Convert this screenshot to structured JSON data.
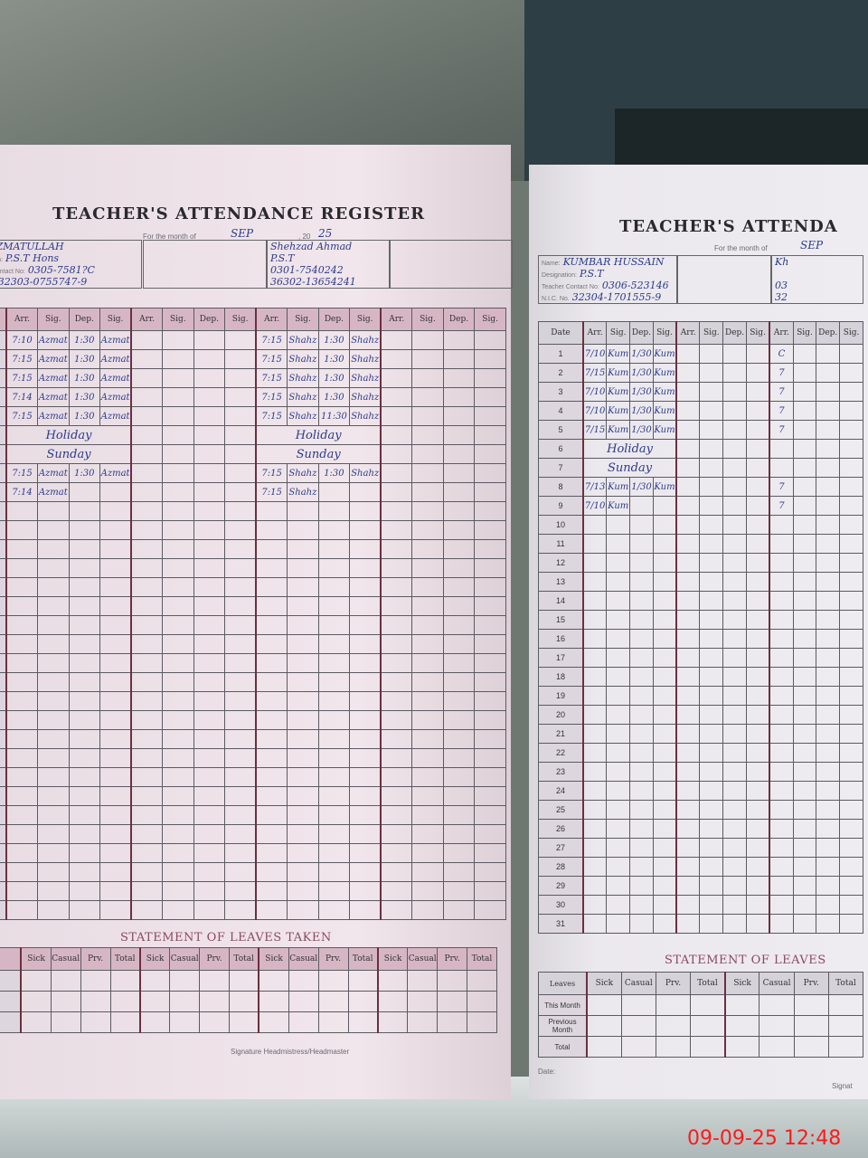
{
  "left_page": {
    "title": "TEACHER'S ATTENDANCE REGISTER",
    "month_label": "For the month of",
    "month_value": "SEP",
    "year_label": ", 20",
    "year_value": "25",
    "info_labels": {
      "name": "Name:",
      "designation": "Designation:",
      "contact": "Teacher Contact No:",
      "cnic": "N.I.C. No."
    },
    "teachers": [
      {
        "name": "AZMATULLAH",
        "designation": "P.S.T Hons",
        "contact": "0305-7581?C",
        "cnic": "32303-0755747-9",
        "rows": [
          [
            "7:10",
            "Azmat",
            "1:30",
            "Azmat"
          ],
          [
            "7:15",
            "Azmat",
            "1:30",
            "Azmat"
          ],
          [
            "7:15",
            "Azmat",
            "1:30",
            "Azmat"
          ],
          [
            "7:14",
            "Azmat",
            "1:30",
            "Azmat"
          ],
          [
            "7:15",
            "Azmat",
            "1:30",
            "Azmat"
          ],
          [
            "Holiday"
          ],
          [
            "Sunday"
          ],
          [
            "7:15",
            "Azmat",
            "1:30",
            "Azmat"
          ],
          [
            "7:14",
            "Azmat"
          ]
        ]
      },
      {
        "name": "",
        "designation": "",
        "contact": "",
        "cnic": "",
        "rows": []
      },
      {
        "name": "Shehzad Ahmad",
        "designation": "P.S.T",
        "contact": "0301-7540242",
        "cnic": "36302-13654241",
        "rows": [
          [
            "7:15",
            "Shahz",
            "1:30",
            "Shahz"
          ],
          [
            "7:15",
            "Shahz",
            "1:30",
            "Shahz"
          ],
          [
            "7:15",
            "Shahz",
            "1:30",
            "Shahz"
          ],
          [
            "7:15",
            "Shahz",
            "1:30",
            "Shahz"
          ],
          [
            "7:15",
            "Shahz",
            "11:30",
            "Shahz"
          ],
          [
            "Holiday"
          ],
          [
            "Sunday"
          ],
          [
            "7:15",
            "Shahz",
            "1:30",
            "Shahz"
          ],
          [
            "7:15",
            "Shahz"
          ]
        ]
      },
      {
        "name": "",
        "designation": "",
        "contact": "",
        "cnic": "",
        "rows": []
      }
    ],
    "column_headers": [
      "Arr.",
      "Sig.",
      "Dep.",
      "Sig."
    ],
    "leaves_title": "STATEMENT OF LEAVES TAKEN",
    "leave_headers": [
      "Sick",
      "Casual",
      "Prv.",
      "Total"
    ],
    "signature_label": "Signature Headmistress/Headmaster"
  },
  "right_page": {
    "title": "TEACHER'S ATTENDA",
    "month_label": "For the month of",
    "month_value": "SEP",
    "info_labels": {
      "name": "Name:",
      "designation": "Designation:",
      "contact": "Teacher Contact No:",
      "cnic": "N.I.C. No."
    },
    "teachers": [
      {
        "name": "KUMBAR HUSSAIN",
        "designation": "P.S.T",
        "contact": "0306-523146",
        "cnic": "32304-1701555-9",
        "rows": [
          [
            "7/10",
            "Kum",
            "1/30",
            "Kum"
          ],
          [
            "7/15",
            "Kum",
            "1/30",
            "Kum"
          ],
          [
            "7/10",
            "Kum",
            "1/30",
            "Kum"
          ],
          [
            "7/10",
            "Kum",
            "1/30",
            "Kum"
          ],
          [
            "7/15",
            "Kum",
            "1/30",
            "Kum"
          ],
          [
            "Holiday"
          ],
          [
            "Sunday"
          ],
          [
            "7/13",
            "Kum",
            "1/30",
            "Kum"
          ],
          [
            "7/10",
            "Kum"
          ]
        ]
      },
      {
        "name": "",
        "designation": "",
        "contact": "",
        "cnic": "",
        "rows": []
      },
      {
        "name": "Kh",
        "designation": "",
        "contact": "03",
        "cnic": "32",
        "rows": [
          [
            "C"
          ],
          [
            "7"
          ],
          [
            "7"
          ],
          [
            "7"
          ],
          [
            "7"
          ],
          [
            ""
          ],
          [
            ""
          ],
          [
            "7"
          ],
          [
            "7"
          ]
        ]
      }
    ],
    "date_header": "Date",
    "column_headers": [
      "Arr.",
      "Sig.",
      "Dep.",
      "Sig."
    ],
    "dates": [
      "1",
      "2",
      "3",
      "4",
      "5",
      "6",
      "7",
      "8",
      "9",
      "10",
      "11",
      "12",
      "13",
      "14",
      "15",
      "16",
      "17",
      "18",
      "19",
      "20",
      "21",
      "22",
      "23",
      "24",
      "25",
      "26",
      "27",
      "28",
      "29",
      "30",
      "31"
    ],
    "leaves_title": "STATEMENT OF LEAVES",
    "leaves_row_header": "Leaves",
    "leave_rows": [
      "This Month",
      "Previous Month",
      "Total"
    ],
    "leave_headers": [
      "Sick",
      "Casual",
      "Prv.",
      "Total"
    ],
    "date_label": "Date:",
    "signature_label": "Signat"
  },
  "timestamp": "09-09-25  12:48",
  "colors": {
    "header_pink": "#d7b6c4",
    "ink_blue": "#2c3a8a",
    "timestamp_red": "#ff1a1a"
  }
}
